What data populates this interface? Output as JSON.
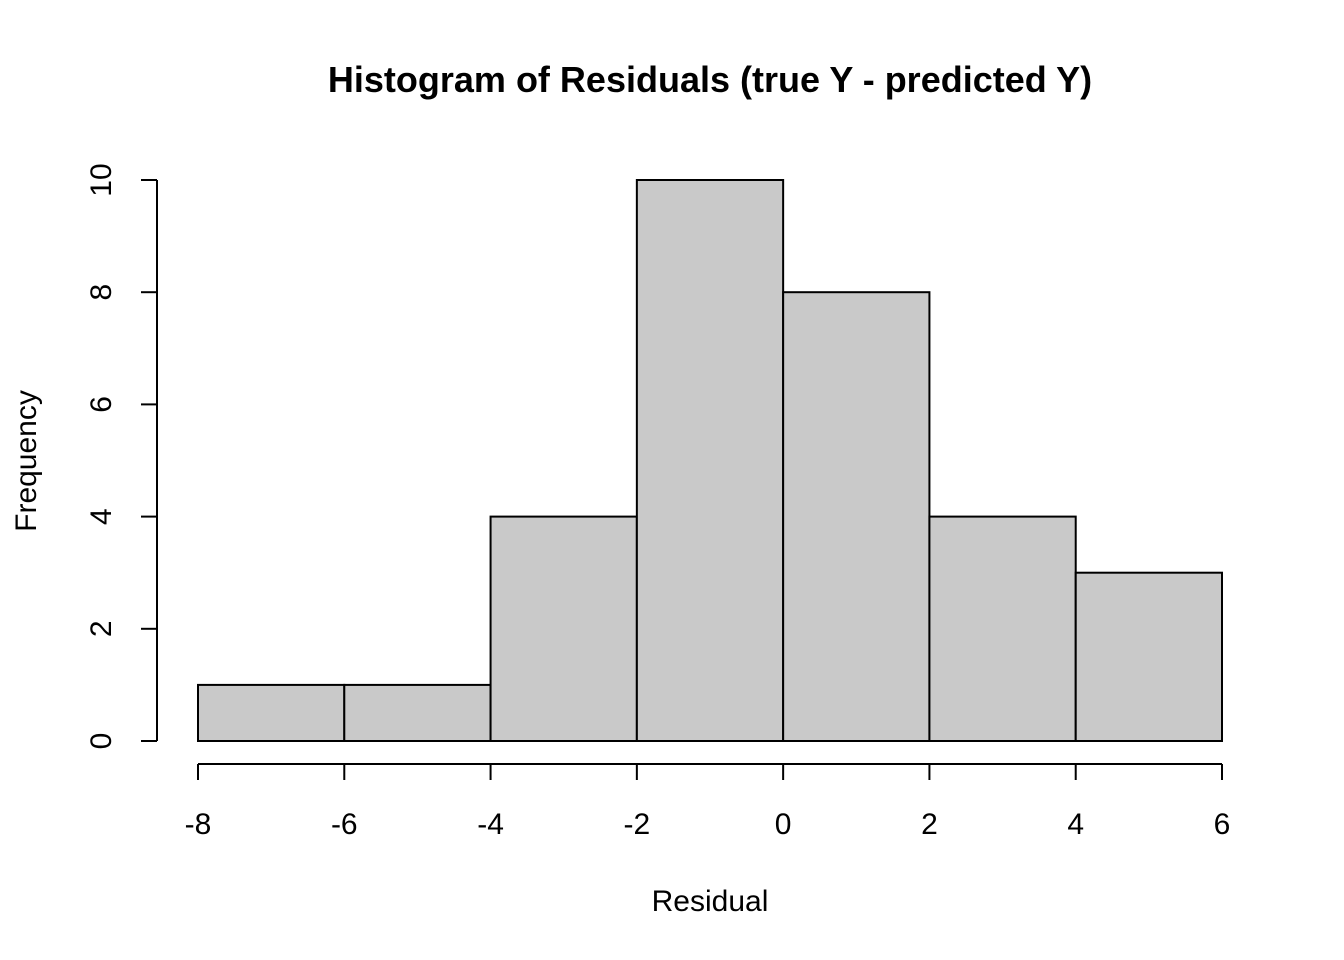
{
  "chart_data": {
    "type": "bar",
    "title": "Histogram of Residuals (true Y - predicted Y)",
    "xlabel": "Residual",
    "ylabel": "Frequency",
    "bins": [
      {
        "from": -8,
        "to": -6,
        "count": 1
      },
      {
        "from": -6,
        "to": -4,
        "count": 1
      },
      {
        "from": -4,
        "to": -2,
        "count": 4
      },
      {
        "from": -2,
        "to": 0,
        "count": 10
      },
      {
        "from": 0,
        "to": 2,
        "count": 8
      },
      {
        "from": 2,
        "to": 4,
        "count": 4
      },
      {
        "from": 4,
        "to": 6,
        "count": 3
      }
    ],
    "xlim": [
      -8,
      6
    ],
    "ylim": [
      0,
      10
    ],
    "x_ticks": [
      -8,
      -6,
      -4,
      -2,
      0,
      2,
      4,
      6
    ],
    "y_ticks": [
      0,
      2,
      4,
      6,
      8,
      10
    ],
    "x_tick_labels": [
      "-8",
      "-6",
      "-4",
      "-2",
      "0",
      "2",
      "4",
      "6"
    ],
    "y_tick_labels": [
      "0",
      "2",
      "4",
      "6",
      "8",
      "10"
    ],
    "bar_fill": "#c9c9c9",
    "bar_stroke": "#000000",
    "grid": false,
    "legend": "none"
  }
}
